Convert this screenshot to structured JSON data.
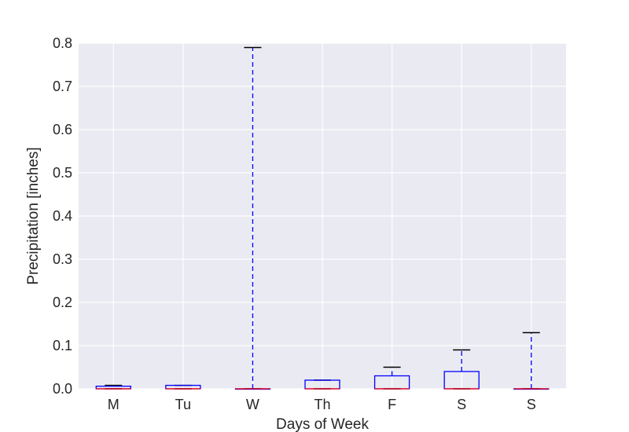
{
  "chart_data": {
    "type": "box",
    "title": "",
    "xlabel": "Days of Week",
    "ylabel": "Precipitation [inches]",
    "ylim": [
      0,
      0.8
    ],
    "yticks": [
      "0.0",
      "0.1",
      "0.2",
      "0.3",
      "0.4",
      "0.5",
      "0.6",
      "0.7",
      "0.8"
    ],
    "grid": true,
    "categories": [
      "M",
      "Tu",
      "W",
      "Th",
      "F",
      "S",
      "S"
    ],
    "boxes": [
      {
        "whisker_low": 0,
        "q1": 0,
        "median": 0,
        "q3": 0.006,
        "whisker_high": 0.008
      },
      {
        "whisker_low": 0,
        "q1": 0,
        "median": 0,
        "q3": 0.008,
        "whisker_high": 0.008
      },
      {
        "whisker_low": 0,
        "q1": 0,
        "median": 0,
        "q3": 0,
        "whisker_high": 0.79
      },
      {
        "whisker_low": 0,
        "q1": 0,
        "median": 0,
        "q3": 0.02,
        "whisker_high": 0.02
      },
      {
        "whisker_low": 0,
        "q1": 0,
        "median": 0,
        "q3": 0.03,
        "whisker_high": 0.05
      },
      {
        "whisker_low": 0,
        "q1": 0,
        "median": 0,
        "q3": 0.04,
        "whisker_high": 0.09
      },
      {
        "whisker_low": 0,
        "q1": 0,
        "median": 0,
        "q3": 0,
        "whisker_high": 0.13
      }
    ],
    "colors": {
      "background": "#eaeaf2",
      "grid": "#ffffff",
      "box": "#0000ff",
      "median": "#ff0000",
      "cap": "#000000"
    }
  }
}
